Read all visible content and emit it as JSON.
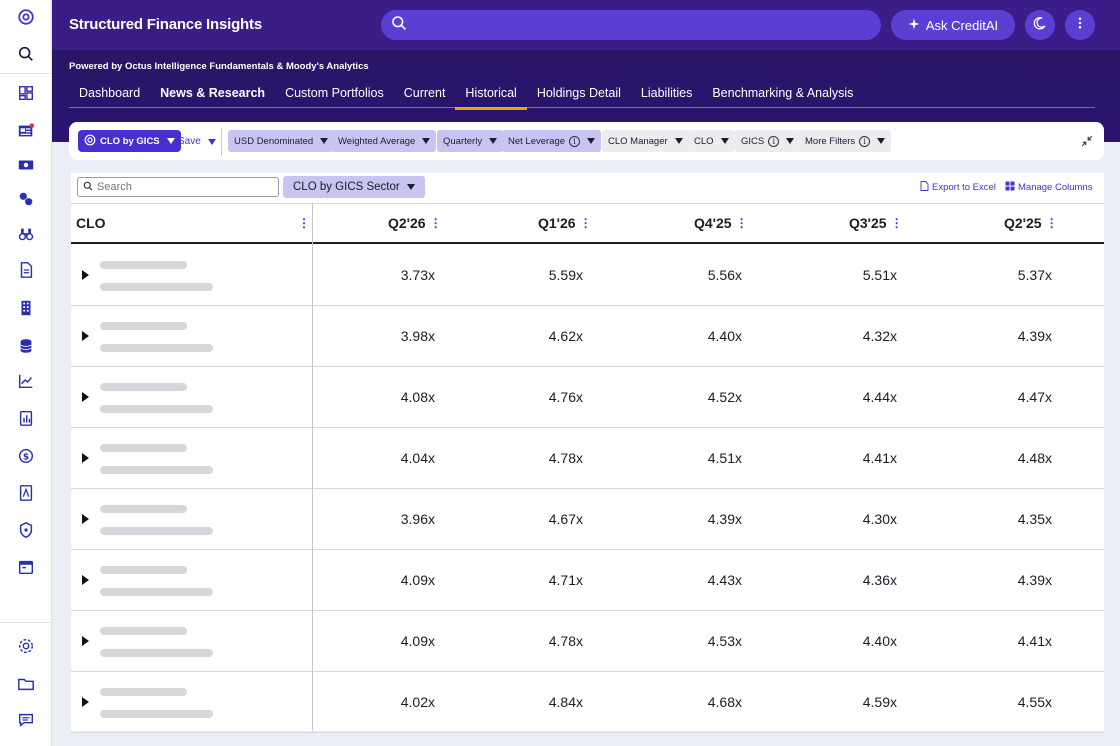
{
  "header": {
    "title": "Structured Finance Insights",
    "search_placeholder": "",
    "ask_label": "Ask CreditAI",
    "powered_by": "Powered by Octus Intelligence Fundamentals & Moody's Analytics"
  },
  "tabs": [
    {
      "label": "Dashboard",
      "active": false
    },
    {
      "label": "News & Research",
      "active": false
    },
    {
      "label": "Custom Portfolios",
      "active": false
    },
    {
      "label": "Current",
      "active": false
    },
    {
      "label": "Historical",
      "active": true
    },
    {
      "label": "Holdings Detail",
      "active": false
    },
    {
      "label": "Liabilities",
      "active": false
    },
    {
      "label": "Benchmarking & Analysis",
      "active": false
    }
  ],
  "filters": {
    "view_label": "CLO by GICS",
    "save_label": "Save",
    "chips": [
      {
        "label": "USD Denominated"
      },
      {
        "label": "Weighted Average"
      },
      {
        "label": "Quarterly"
      },
      {
        "label": "Net Leverage"
      },
      {
        "label": "CLO Manager"
      },
      {
        "label": "CLO"
      },
      {
        "label": "GICS"
      },
      {
        "label": "More Filters"
      }
    ]
  },
  "table": {
    "search_placeholder": "Search",
    "group_label": "CLO by GICS Sector",
    "export_label": "Export to Excel",
    "manage_label": "Manage Columns",
    "first_col": "CLO",
    "columns": [
      "Q2'26",
      "Q1'26",
      "Q4'25",
      "Q3'25",
      "Q2'25"
    ],
    "rows": [
      [
        "3.73x",
        "5.59x",
        "5.56x",
        "5.51x",
        "5.37x"
      ],
      [
        "3.98x",
        "4.62x",
        "4.40x",
        "4.32x",
        "4.39x"
      ],
      [
        "4.08x",
        "4.76x",
        "4.52x",
        "4.44x",
        "4.47x"
      ],
      [
        "4.04x",
        "4.78x",
        "4.51x",
        "4.41x",
        "4.48x"
      ],
      [
        "3.96x",
        "4.67x",
        "4.39x",
        "4.30x",
        "4.35x"
      ],
      [
        "4.09x",
        "4.71x",
        "4.43x",
        "4.36x",
        "4.39x"
      ],
      [
        "4.09x",
        "4.78x",
        "4.53x",
        "4.40x",
        "4.41x"
      ],
      [
        "4.02x",
        "4.84x",
        "4.68x",
        "4.59x",
        "4.55x"
      ]
    ]
  },
  "colors": {
    "brand": "#3a1d86",
    "accent": "#4a2fd0",
    "tab_underline": "#e8a316"
  }
}
